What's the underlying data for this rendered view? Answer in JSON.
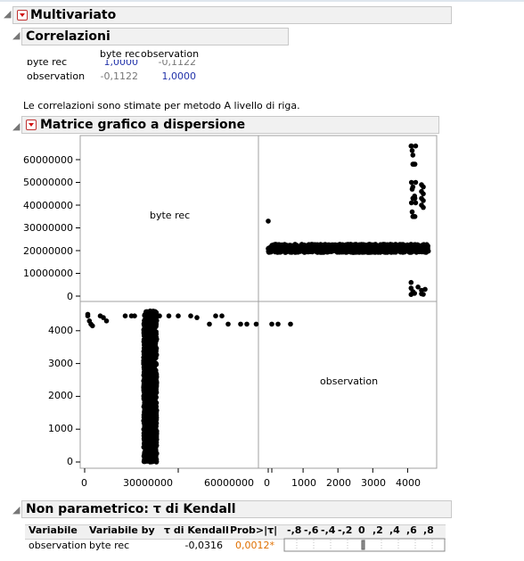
{
  "multivariate": {
    "title": "Multivariato"
  },
  "correlations": {
    "title": "Correlazioni",
    "columns": [
      "byte rec",
      "observation"
    ],
    "rows": [
      {
        "label": "byte rec",
        "values": [
          "1,0000",
          "-0,1122"
        ]
      },
      {
        "label": "observation",
        "values": [
          "-0,1122",
          "1,0000"
        ]
      }
    ],
    "note": "Le correlazioni sono stimate per metodo A livello di riga."
  },
  "scatter_matrix": {
    "title": "Matrice grafico a dispersione",
    "var_labels": [
      "byte rec",
      "observation"
    ],
    "y_ticks_top": [
      "60000000",
      "50000000",
      "40000000",
      "30000000",
      "20000000",
      "10000000",
      "0"
    ],
    "y_ticks_bottom": [
      "4000",
      "3000",
      "2000",
      "1000",
      "0"
    ],
    "x_ticks_left": [
      "0",
      "30000000",
      "60000000"
    ],
    "x_ticks_right": [
      "0",
      "1000",
      "2000",
      "3000",
      "4000"
    ]
  },
  "chart_data": {
    "type": "scatter",
    "title": "Matrice grafico a dispersione",
    "variables": [
      "byte rec",
      "observation"
    ],
    "ranges": {
      "byte rec": [
        0,
        68000000
      ],
      "observation": [
        0,
        4600
      ]
    },
    "grid": false,
    "panels": [
      {
        "x_var": "observation",
        "y_var": "byte rec",
        "description_points": [
          [
            0,
            33000000
          ],
          [
            100,
            22000000
          ],
          [
            1000,
            21000000
          ],
          [
            2000,
            21000000
          ],
          [
            3000,
            20500000
          ],
          [
            4000,
            21000000
          ],
          [
            4100,
            66000000
          ],
          [
            4150,
            62000000
          ],
          [
            4150,
            48000000
          ],
          [
            4200,
            44000000
          ],
          [
            4100,
            6000000
          ],
          [
            4300,
            4000000
          ],
          [
            4400,
            1000000
          ],
          [
            4500,
            22000000
          ]
        ]
      },
      {
        "x_var": "byte rec",
        "y_var": "observation",
        "description_points": [
          [
            1000000,
            4450
          ],
          [
            2000000,
            4200
          ],
          [
            5000000,
            4450
          ],
          [
            15000000,
            4450
          ],
          [
            21000000,
            0
          ],
          [
            21000000,
            1000
          ],
          [
            21000000,
            2000
          ],
          [
            21000000,
            3000
          ],
          [
            21000000,
            4000
          ],
          [
            21000000,
            4600
          ],
          [
            24000000,
            4450
          ],
          [
            30000000,
            4450
          ],
          [
            23000000,
            0
          ],
          [
            40000000,
            4200
          ],
          [
            55000000,
            4200
          ],
          [
            66000000,
            4200
          ]
        ]
      }
    ]
  },
  "kendall": {
    "title": "Non parametrico: τ di Kendall",
    "headers": [
      "Variabile",
      "Variabile by",
      "τ di Kendall",
      "Prob>|τ|"
    ],
    "bar_ticks": [
      "-,8",
      "-,6",
      "-,4",
      "-,2",
      "0",
      ",2",
      ",4",
      ",6",
      ",8"
    ],
    "row": {
      "var": "observation",
      "by": "byte rec",
      "tau": "-0,0316",
      "prob": "0,0012*",
      "tau_value": -0.0316
    },
    "prob_color": "#e07000"
  }
}
